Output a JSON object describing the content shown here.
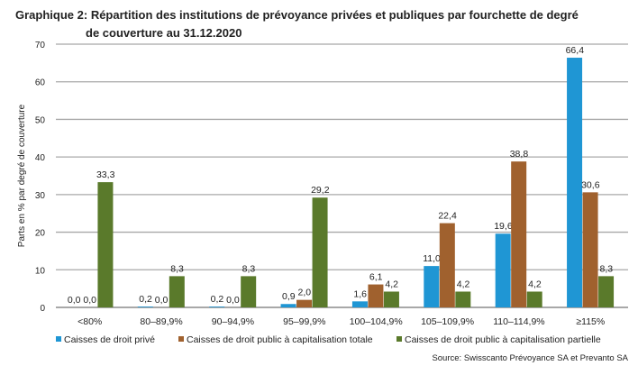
{
  "title": {
    "prefix": "Graphique 2:",
    "line1": "Répartition des institutions de prévoyance privées et publiques par fourchette de degré",
    "line2": "de couverture au 31.12.2020"
  },
  "source": "Source: Swisscanto Prévoyance SA et Prevanto SA",
  "chart_data": {
    "type": "bar",
    "title": "Répartition des institutions de prévoyance privées et publiques par fourchette de degré de couverture au 31.12.2020",
    "xlabel": "",
    "ylabel": "Parts en % par degré de couverture",
    "ylim": [
      0,
      70
    ],
    "yticks": [
      0,
      10,
      20,
      30,
      40,
      50,
      60,
      70
    ],
    "grid": true,
    "legend_position": "bottom",
    "categories": [
      "<80%",
      "80–89,9%",
      "90–94,9%",
      "95–99,9%",
      "100–104,9%",
      "105–109,9%",
      "110–114,9%",
      "≥115%"
    ],
    "series": [
      {
        "name": "Caisses de droit privé",
        "color": "#1f96d4",
        "values": [
          0.0,
          0.2,
          0.2,
          0.9,
          1.6,
          11.0,
          19.6,
          66.4
        ]
      },
      {
        "name": "Caisses de droit public à capitalisation totale",
        "color": "#a0612e",
        "values": [
          0.0,
          0.0,
          0.0,
          2.0,
          6.1,
          22.4,
          38.8,
          30.6
        ]
      },
      {
        "name": "Caisses de droit public à capitalisation partielle",
        "color": "#5a7a2b",
        "values": [
          33.3,
          8.3,
          8.3,
          29.2,
          4.2,
          4.2,
          4.2,
          8.3
        ]
      }
    ]
  }
}
